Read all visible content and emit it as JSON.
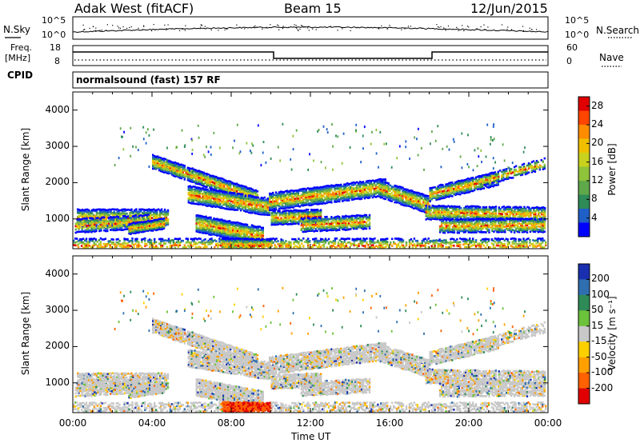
{
  "header": {
    "station": "Adak West (fitACF)",
    "beam": "Beam 15",
    "date": "12/Jun/2015"
  },
  "top_panels": {
    "nsky_label": "N.Sky",
    "nsearch_label": "N.Search",
    "noise_ticks": [
      "10^5",
      "10^0"
    ],
    "freq_label": "Freq.",
    "freq_unit": "[MHz]",
    "freq_ticks": [
      "18",
      "8"
    ],
    "nave_label": "Nave",
    "nave_ticks": [
      "60",
      "0"
    ],
    "cpid_label": "CPID",
    "cpid_text": "normalsound (fast) 157 RF"
  },
  "chart_data": [
    {
      "type": "heatmap",
      "name": "power",
      "ylabel": "Slant Range [km]",
      "xlabel": "",
      "ylim": [
        180,
        4500
      ],
      "xlim": [
        0,
        24
      ],
      "yticks": [
        1000,
        2000,
        3000,
        4000
      ],
      "colorbar": {
        "label": "Power [dB]",
        "ticks": [
          "4",
          "8",
          "12",
          "16",
          "20",
          "24",
          "28"
        ],
        "range": [
          0,
          30
        ],
        "colors": [
          "#0000ff",
          "#1f5fc8",
          "#2e8b57",
          "#5fa84a",
          "#8fc33a",
          "#c8d21e",
          "#f0c000",
          "#ff8c00",
          "#ff4500",
          "#e00000"
        ]
      }
    },
    {
      "type": "heatmap",
      "name": "velocity",
      "ylabel": "Slant Range [km]",
      "xlabel": "Time UT",
      "ylim": [
        180,
        4500
      ],
      "xlim": [
        0,
        24
      ],
      "yticks": [
        1000,
        2000,
        3000,
        4000
      ],
      "xticks": [
        "00:00",
        "04:00",
        "08:00",
        "12:00",
        "16:00",
        "20:00",
        "00:00"
      ],
      "colorbar": {
        "label": "Velocity [m s⁻¹]",
        "ticks": [
          "200",
          "100",
          "50",
          "15",
          "-15",
          "-50",
          "-100",
          "-200"
        ],
        "colors": [
          "#1a2fb0",
          "#2f6fb0",
          "#2e8b57",
          "#6cc23a",
          "#c8c8c8",
          "#ffd000",
          "#ffa000",
          "#ff6000",
          "#e00000"
        ]
      }
    }
  ],
  "echo_bands": [
    {
      "start": 0.2,
      "end": 4.8,
      "r0": 1000,
      "r1": 1000,
      "width": 170,
      "strength": 0.85
    },
    {
      "start": 0.1,
      "end": 3.8,
      "r0": 780,
      "r1": 900,
      "width": 120,
      "strength": 0.7
    },
    {
      "start": 2.8,
      "end": 4.6,
      "r0": 700,
      "r1": 850,
      "width": 90,
      "strength": 1.0
    },
    {
      "start": 4.0,
      "end": 9.3,
      "r0": 2550,
      "r1": 1550,
      "width": 140,
      "strength": 0.95
    },
    {
      "start": 5.8,
      "end": 9.9,
      "r0": 1650,
      "r1": 1300,
      "width": 180,
      "strength": 0.9
    },
    {
      "start": 6.2,
      "end": 9.6,
      "r0": 850,
      "r1": 500,
      "width": 200,
      "strength": 0.95
    },
    {
      "start": 7.5,
      "end": 10.0,
      "r0": 300,
      "r1": 260,
      "width": 70,
      "strength": 1.0
    },
    {
      "start": 9.9,
      "end": 15.8,
      "r0": 1450,
      "r1": 1850,
      "width": 160,
      "strength": 0.9
    },
    {
      "start": 10.0,
      "end": 12.5,
      "r0": 1000,
      "r1": 1050,
      "width": 130,
      "strength": 0.9
    },
    {
      "start": 11.5,
      "end": 15.0,
      "r0": 800,
      "r1": 900,
      "width": 130,
      "strength": 0.85
    },
    {
      "start": 15.5,
      "end": 18.0,
      "r0": 1800,
      "r1": 1350,
      "width": 160,
      "strength": 0.9
    },
    {
      "start": 18.0,
      "end": 21.5,
      "r0": 1650,
      "r1": 2100,
      "width": 150,
      "strength": 0.85
    },
    {
      "start": 20.5,
      "end": 23.8,
      "r0": 2000,
      "r1": 2500,
      "width": 110,
      "strength": 0.6
    },
    {
      "start": 17.8,
      "end": 23.8,
      "r0": 1150,
      "r1": 1100,
      "width": 150,
      "strength": 0.85
    },
    {
      "start": 18.5,
      "end": 23.8,
      "r0": 780,
      "r1": 800,
      "width": 130,
      "strength": 0.8
    },
    {
      "start": 0.0,
      "end": 23.9,
      "r0": 240,
      "r1": 240,
      "width": 120,
      "strength": 0.55
    }
  ]
}
